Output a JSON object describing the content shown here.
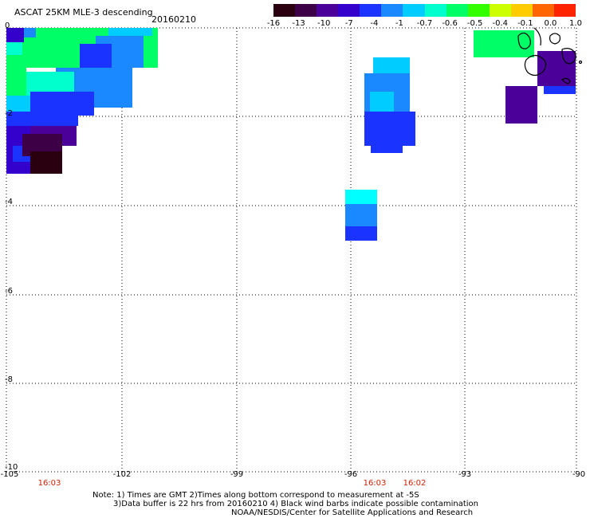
{
  "header": {
    "title": "ASCAT 25KM MLE-3 descending",
    "date": "20160210"
  },
  "colorbar": {
    "labels": [
      "-16",
      "-13",
      "-10",
      "-7",
      "-4",
      "-1",
      "-0.7",
      "-0.6",
      "-0.5",
      "-0.4",
      "-0.1",
      "0.0",
      "1.0"
    ],
    "colors": [
      "#2a0010",
      "#3d0047",
      "#4a0099",
      "#3300cc",
      "#1a33ff",
      "#1a88ff",
      "#00ccff",
      "#00ffcc",
      "#00ff66",
      "#33ff00",
      "#ccff00",
      "#ffcc00",
      "#ff6600",
      "#ff2200"
    ]
  },
  "axes": {
    "y_ticks": [
      "0",
      "-2",
      "-4",
      "-6",
      "-8",
      "-10"
    ],
    "x_ticks": [
      "-105",
      "-102",
      "-99",
      "-96",
      "-93",
      "-90"
    ]
  },
  "times": [
    "16:03",
    "16:03",
    "16:02"
  ],
  "notes": {
    "line1": "Note: 1) Times are GMT 2)Times along bottom correspond to measurement at -5S",
    "line2": "3)Data buffer is 22 hrs from 20160210 4) Black wind barbs indicate possible contamination",
    "line3": "NOAA/NESDIS/Center for Satellite Applications and Research"
  },
  "map": {
    "lon_range": [
      -105,
      -90
    ],
    "lat_range": [
      -10,
      0
    ],
    "grid": true
  }
}
